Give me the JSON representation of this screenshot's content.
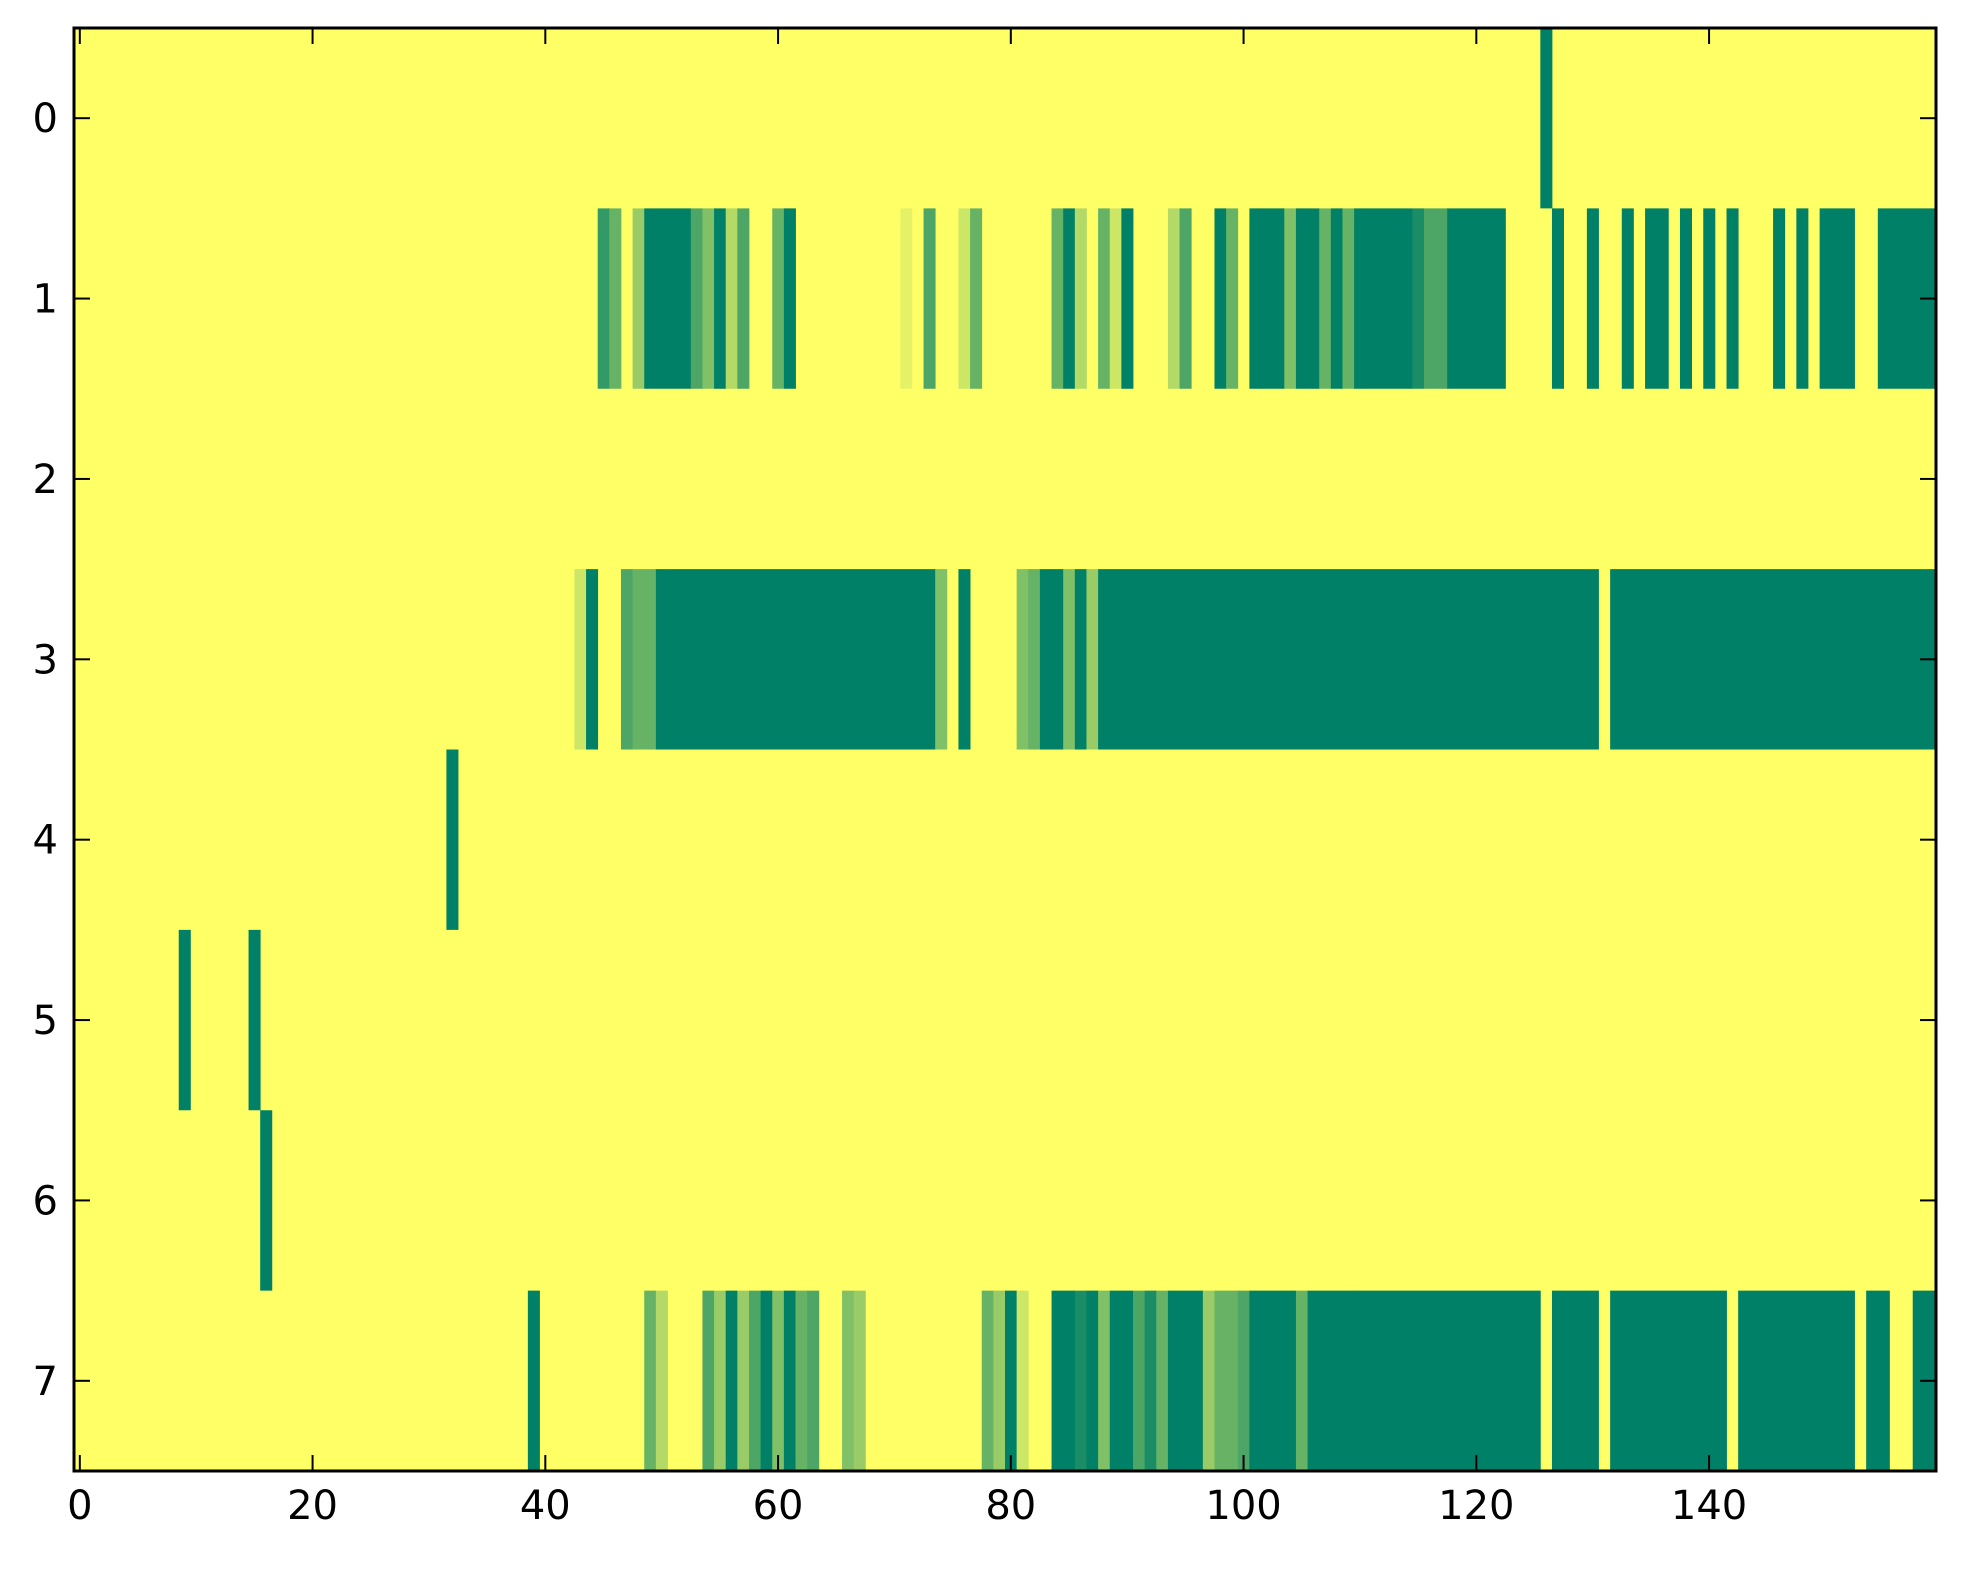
{
  "chart_data": {
    "type": "heatmap",
    "title": "",
    "xlabel": "",
    "ylabel": "",
    "n_cols": 160,
    "n_rows": 8,
    "xlim": [
      -0.5,
      159.5
    ],
    "ylim": [
      7.5,
      -0.5
    ],
    "xticks": [
      0,
      20,
      40,
      60,
      80,
      100,
      120,
      140
    ],
    "xtick_labels": [
      "0",
      "20",
      "40",
      "60",
      "80",
      "100",
      "120",
      "140"
    ],
    "yticks": [
      0,
      1,
      2,
      3,
      4,
      5,
      6,
      7
    ],
    "ytick_labels": [
      "0",
      "1",
      "2",
      "3",
      "4",
      "5",
      "6",
      "7"
    ],
    "colormap": "summer_r",
    "background_value": 0,
    "value_range": [
      0,
      1
    ],
    "colors": {
      "low": "#ffff66",
      "high": "#008066"
    },
    "grid": false,
    "legend": "none",
    "rows": [
      {
        "row": 0,
        "runs": [
          [
            126,
            126,
            1
          ]
        ]
      },
      {
        "row": 1,
        "runs": [
          [
            45,
            45,
            0.8
          ],
          [
            46,
            46,
            0.6
          ],
          [
            48,
            48,
            0.4
          ],
          [
            49,
            52,
            1
          ],
          [
            53,
            53,
            0.7
          ],
          [
            54,
            54,
            0.5
          ],
          [
            55,
            55,
            1
          ],
          [
            56,
            56,
            0.3
          ],
          [
            57,
            57,
            0.7
          ],
          [
            60,
            60,
            0.6
          ],
          [
            61,
            61,
            1
          ],
          [
            71,
            71,
            0.1
          ],
          [
            73,
            73,
            0.7
          ],
          [
            76,
            76,
            0.2
          ],
          [
            77,
            77,
            0.6
          ],
          [
            84,
            84,
            0.6
          ],
          [
            85,
            85,
            1
          ],
          [
            86,
            86,
            0.3
          ],
          [
            88,
            88,
            0.6
          ],
          [
            89,
            89,
            0.2
          ],
          [
            90,
            90,
            1
          ],
          [
            94,
            94,
            0.3
          ],
          [
            95,
            95,
            0.7
          ],
          [
            98,
            98,
            1
          ],
          [
            99,
            99,
            0.6
          ],
          [
            101,
            101,
            1
          ],
          [
            102,
            103,
            1
          ],
          [
            104,
            104,
            0.5
          ],
          [
            105,
            106,
            1
          ],
          [
            107,
            107,
            0.6
          ],
          [
            108,
            108,
            1
          ],
          [
            109,
            109,
            0.6
          ],
          [
            110,
            110,
            1
          ],
          [
            111,
            114,
            1
          ],
          [
            115,
            115,
            0.9
          ],
          [
            116,
            117,
            0.7
          ],
          [
            118,
            122,
            1
          ],
          [
            127,
            127,
            1
          ],
          [
            130,
            130,
            1
          ],
          [
            133,
            133,
            1
          ],
          [
            135,
            136,
            1
          ],
          [
            138,
            138,
            1
          ],
          [
            140,
            140,
            1
          ],
          [
            142,
            142,
            1
          ],
          [
            146,
            146,
            1
          ],
          [
            148,
            148,
            1
          ],
          [
            150,
            152,
            1
          ],
          [
            155,
            159,
            1
          ]
        ]
      },
      {
        "row": 2,
        "runs": []
      },
      {
        "row": 3,
        "runs": [
          [
            43,
            43,
            0.2
          ],
          [
            44,
            44,
            1
          ],
          [
            47,
            47,
            0.7
          ],
          [
            48,
            49,
            0.6
          ],
          [
            50,
            50,
            1
          ],
          [
            51,
            73,
            1
          ],
          [
            74,
            74,
            0.5
          ],
          [
            76,
            76,
            1
          ],
          [
            81,
            81,
            0.5
          ],
          [
            82,
            82,
            0.6
          ],
          [
            83,
            84,
            1
          ],
          [
            85,
            85,
            0.5
          ],
          [
            86,
            86,
            1
          ],
          [
            87,
            87,
            0.4
          ],
          [
            88,
            130,
            1
          ],
          [
            132,
            159,
            1
          ]
        ]
      },
      {
        "row": 4,
        "runs": [
          [
            32,
            32,
            1
          ]
        ]
      },
      {
        "row": 5,
        "runs": [
          [
            9,
            9,
            1
          ],
          [
            15,
            15,
            1
          ]
        ]
      },
      {
        "row": 6,
        "runs": [
          [
            16,
            16,
            1
          ]
        ]
      },
      {
        "row": 7,
        "runs": [
          [
            39,
            39,
            1
          ],
          [
            49,
            49,
            0.6
          ],
          [
            50,
            50,
            0.3
          ],
          [
            54,
            54,
            0.7
          ],
          [
            55,
            55,
            0.4
          ],
          [
            56,
            56,
            1
          ],
          [
            57,
            57,
            0.4
          ],
          [
            58,
            58,
            0.7
          ],
          [
            59,
            59,
            1
          ],
          [
            60,
            60,
            0.5
          ],
          [
            61,
            61,
            1
          ],
          [
            62,
            62,
            0.6
          ],
          [
            63,
            63,
            0.7
          ],
          [
            66,
            66,
            0.5
          ],
          [
            67,
            67,
            0.4
          ],
          [
            78,
            78,
            0.6
          ],
          [
            79,
            79,
            0.4
          ],
          [
            80,
            80,
            1
          ],
          [
            81,
            81,
            0.2
          ],
          [
            84,
            85,
            1
          ],
          [
            86,
            86,
            0.9
          ],
          [
            87,
            87,
            1
          ],
          [
            88,
            88,
            0.5
          ],
          [
            89,
            90,
            1
          ],
          [
            91,
            91,
            0.7
          ],
          [
            92,
            92,
            0.9
          ],
          [
            93,
            93,
            0.6
          ],
          [
            94,
            96,
            1
          ],
          [
            97,
            97,
            0.4
          ],
          [
            98,
            99,
            0.6
          ],
          [
            100,
            100,
            0.7
          ],
          [
            101,
            104,
            1
          ],
          [
            105,
            105,
            0.6
          ],
          [
            106,
            109,
            1
          ],
          [
            110,
            125,
            1
          ],
          [
            127,
            130,
            1
          ],
          [
            132,
            141,
            1
          ],
          [
            143,
            152,
            1
          ],
          [
            154,
            155,
            1
          ],
          [
            158,
            159,
            1
          ]
        ]
      }
    ]
  }
}
